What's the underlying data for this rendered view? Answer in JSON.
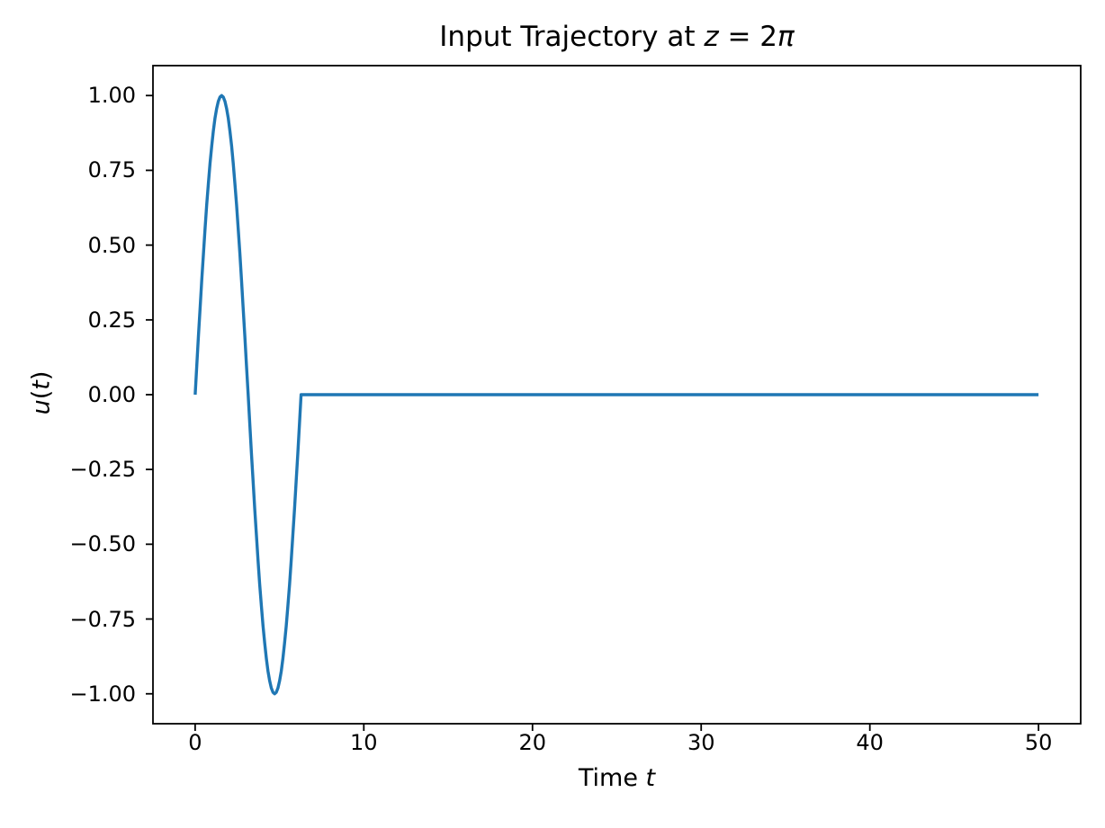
{
  "figure": {
    "background": "#ffffff"
  },
  "chart_data": {
    "type": "line",
    "title": "Input Trajectory at z = 2π",
    "title_parts": {
      "prefix": "Input Trajectory at ",
      "var": "z",
      "equals": " = ",
      "coefficient": "2",
      "pi": "π"
    },
    "xlabel": "Time t",
    "xlabel_parts": {
      "prefix": "Time ",
      "var": "t"
    },
    "ylabel": "u(t)",
    "ylabel_parts": {
      "var_u": "u",
      "paren_open": "(",
      "var_t": "t",
      "paren_close": ")"
    },
    "xlim": [
      -2.5,
      52.5
    ],
    "ylim": [
      -1.1,
      1.1
    ],
    "xticks": {
      "values": [
        0,
        10,
        20,
        30,
        40,
        50
      ],
      "labels": [
        "0",
        "10",
        "20",
        "30",
        "40",
        "50"
      ]
    },
    "yticks": {
      "values": [
        1.0,
        0.75,
        0.5,
        0.25,
        0.0,
        -0.25,
        -0.5,
        -0.75,
        -1.0
      ],
      "labels": [
        "1.00",
        "0.75",
        "0.50",
        "0.25",
        "0.00",
        "−0.25",
        "−0.50",
        "−0.75",
        "−1.00"
      ]
    },
    "grid": false,
    "legend": "none",
    "axis_color": "#000000",
    "series": [
      {
        "name": "u(t)",
        "function": "u(t) = sin(t) for 0 ≤ t ≤ 2π; u(t) = 0 for 2π < t ≤ 50",
        "color": "#1f77b4",
        "line_width": 3.4,
        "points": [
          [
            0,
            0
          ],
          [
            0.0982,
            0.098
          ],
          [
            0.1963,
            0.1951
          ],
          [
            0.2945,
            0.2903
          ],
          [
            0.3927,
            0.3827
          ],
          [
            0.4909,
            0.4714
          ],
          [
            0.589,
            0.5556
          ],
          [
            0.6872,
            0.6344
          ],
          [
            0.7854,
            0.7071
          ],
          [
            0.8836,
            0.773
          ],
          [
            0.9817,
            0.8315
          ],
          [
            1.0799,
            0.8819
          ],
          [
            1.1781,
            0.9239
          ],
          [
            1.2763,
            0.9569
          ],
          [
            1.3744,
            0.9808
          ],
          [
            1.4726,
            0.9952
          ],
          [
            1.5708,
            1.0
          ],
          [
            1.669,
            0.9952
          ],
          [
            1.7671,
            0.9808
          ],
          [
            1.8653,
            0.9569
          ],
          [
            1.9635,
            0.9239
          ],
          [
            2.0617,
            0.8819
          ],
          [
            2.1598,
            0.8315
          ],
          [
            2.258,
            0.773
          ],
          [
            2.3562,
            0.7071
          ],
          [
            2.4544,
            0.6344
          ],
          [
            2.5525,
            0.5556
          ],
          [
            2.6507,
            0.4714
          ],
          [
            2.7489,
            0.3827
          ],
          [
            2.8471,
            0.2903
          ],
          [
            2.9452,
            0.1951
          ],
          [
            3.0434,
            0.098
          ],
          [
            3.1416,
            0.0
          ],
          [
            3.2398,
            -0.098
          ],
          [
            3.3379,
            -0.1951
          ],
          [
            3.4361,
            -0.2903
          ],
          [
            3.5343,
            -0.3827
          ],
          [
            3.6325,
            -0.4714
          ],
          [
            3.7306,
            -0.5556
          ],
          [
            3.8288,
            -0.6344
          ],
          [
            3.927,
            -0.7071
          ],
          [
            4.0252,
            -0.773
          ],
          [
            4.1233,
            -0.8315
          ],
          [
            4.2215,
            -0.8819
          ],
          [
            4.3197,
            -0.9239
          ],
          [
            4.4179,
            -0.9569
          ],
          [
            4.516,
            -0.9808
          ],
          [
            4.6142,
            -0.9952
          ],
          [
            4.7124,
            -1.0
          ],
          [
            4.8106,
            -0.9952
          ],
          [
            4.9087,
            -0.9808
          ],
          [
            5.0069,
            -0.9569
          ],
          [
            5.1051,
            -0.9239
          ],
          [
            5.2033,
            -0.8819
          ],
          [
            5.3014,
            -0.8315
          ],
          [
            5.3996,
            -0.773
          ],
          [
            5.4978,
            -0.7071
          ],
          [
            5.596,
            -0.6344
          ],
          [
            5.6941,
            -0.5556
          ],
          [
            5.7923,
            -0.4714
          ],
          [
            5.8905,
            -0.3827
          ],
          [
            5.9887,
            -0.2903
          ],
          [
            6.0868,
            -0.1951
          ],
          [
            6.185,
            -0.098
          ],
          [
            6.2832,
            0.0
          ],
          [
            50,
            0.0
          ]
        ]
      }
    ]
  }
}
